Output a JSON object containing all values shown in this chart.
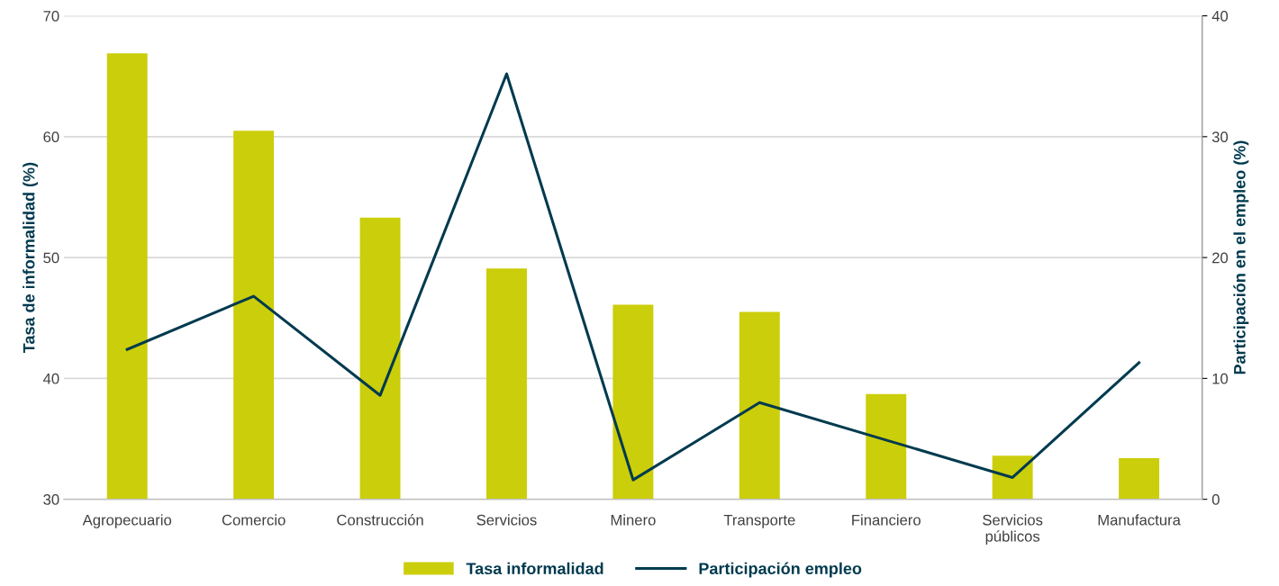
{
  "chart_data": {
    "type": "bar",
    "categories": [
      "Agropecuario",
      "Comercio",
      "Construcción",
      "Servicios",
      "Minero",
      "Transporte",
      "Financiero",
      "Servicios\npúblicos",
      "Manufactura"
    ],
    "series": [
      {
        "name": "Tasa informalidad",
        "color": "#cbce0a",
        "values": [
          66.9,
          60.5,
          53.3,
          49.1,
          46.1,
          45.5,
          38.7,
          33.6,
          33.4
        ]
      },
      {
        "name": "Participación empleo",
        "type": "line",
        "axis": "y2",
        "color": "#003a4f",
        "values": [
          12.4,
          16.8,
          8.6,
          35.2,
          1.6,
          8.0,
          4.9,
          1.8,
          11.3
        ]
      }
    ],
    "ylabel": "Tasa de informalidad (%)",
    "y2label": "Participación en el empleo (%)",
    "ylim": [
      30,
      70
    ],
    "yticks": [
      30,
      40,
      50,
      60,
      70
    ],
    "y2lim": [
      0,
      40
    ],
    "y2ticks": [
      0,
      10,
      20,
      30,
      40
    ],
    "grid": "y",
    "legend": "bottom",
    "marker": "none",
    "line_style": "solid"
  }
}
